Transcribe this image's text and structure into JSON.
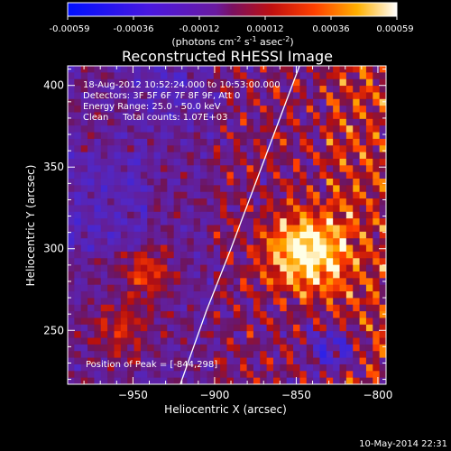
{
  "colorbar": {
    "ticks": [
      "-0.00059",
      "-0.00036",
      "-0.00012",
      "0.00012",
      "0.00036",
      "0.00059"
    ],
    "units_main": "(photons cm",
    "units_exp1": "-2",
    "units_mid": " s",
    "units_exp2": "-1",
    "units_mid2": " asec",
    "units_exp3": "-2",
    "units_close": ")"
  },
  "annotation": {
    "time": "18-Aug-2012 10:52:24.000 to 10:53:00.000",
    "detectors": "Detectors: 3F 5F 6F 7F 8F 9F, Att 0",
    "energy": "Energy Range: 25.0 - 50.0 keV",
    "clean": "Clean     Total counts: 1.07E+03",
    "peak": "Position of Peak = [-844,298]"
  },
  "footer": {
    "timestamp": "10-May-2014 22:31"
  },
  "chart_data": {
    "type": "heatmap",
    "title": "Reconstructed RHESSI Image",
    "xlabel": "Heliocentric X (arcsec)",
    "ylabel": "Heliocentric Y (arcsec)",
    "xlim": [
      -990,
      -795
    ],
    "ylim": [
      217,
      412
    ],
    "x_ticks": [
      -950,
      -900,
      -850,
      -800
    ],
    "y_ticks": [
      250,
      300,
      350,
      400
    ],
    "color_range": [
      -0.00059,
      0.00059
    ],
    "peak": [
      -844,
      298
    ],
    "limb_curve": [
      [
        -921,
        217
      ],
      [
        -905,
        262
      ],
      [
        -890,
        300
      ],
      [
        -872,
        348
      ],
      [
        -848,
        412
      ]
    ],
    "colors": {
      "negative": "#1a20ff",
      "zero": "#6a1aa0",
      "positive_mid": "#ff3000",
      "positive_high": "#ffffff"
    }
  }
}
